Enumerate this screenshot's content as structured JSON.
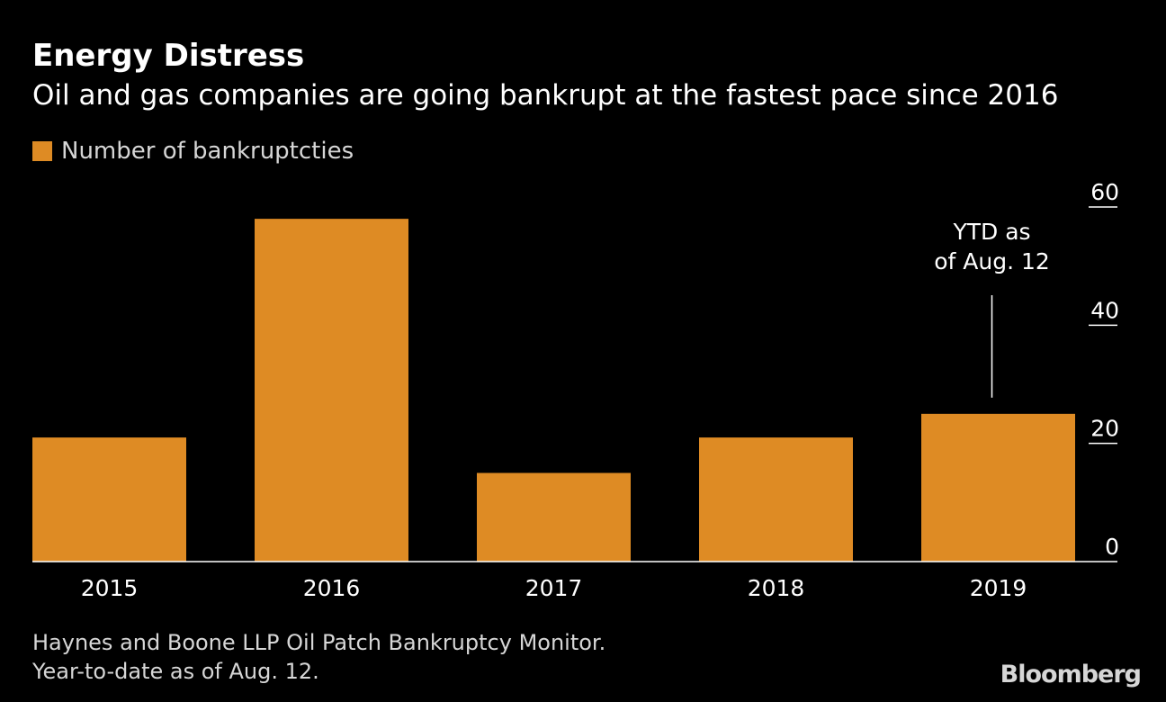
{
  "chart_data": {
    "type": "bar",
    "title": "Energy Distress",
    "subtitle": "Oil and gas companies are going bankrupt at the fastest pace since 2016",
    "categories": [
      "2015",
      "2016",
      "2017",
      "2018",
      "2019"
    ],
    "series": [
      {
        "name": "Number of bankruptcties",
        "values": [
          21,
          58,
          15,
          21,
          25
        ],
        "color": "#DE8B24"
      }
    ],
    "xlabel": "",
    "ylabel": "",
    "ylim": [
      0,
      60
    ],
    "yticks": [
      "0",
      "20",
      "40",
      "60"
    ],
    "annotation": {
      "category": "2019",
      "line1": "YTD as",
      "line2": "of Aug. 12"
    },
    "legend_position": "top-left",
    "grid": false
  },
  "source": {
    "line1": "Haynes and Boone LLP Oil Patch Bankruptcy Monitor.",
    "line2": "Year-to-date as of Aug. 12."
  },
  "brand": "Bloomberg"
}
